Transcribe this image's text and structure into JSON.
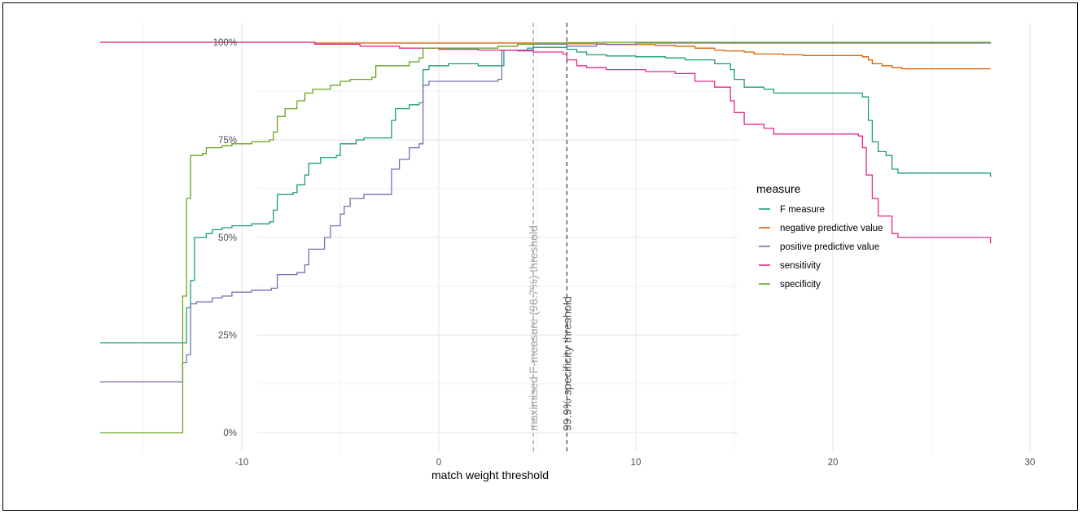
{
  "chart_data": {
    "type": "line",
    "title": "",
    "xlabel": "match weight threshold",
    "ylabel": "",
    "xlim": [
      -17.2,
      30
    ],
    "ylim": [
      0,
      1
    ],
    "x_ticks": [
      -10,
      0,
      10,
      20,
      30
    ],
    "x_tick_labels": [
      "-10",
      "0",
      "10",
      "20",
      "30"
    ],
    "y_ticks": [
      0,
      0.25,
      0.5,
      0.75,
      1.0
    ],
    "y_tick_labels": [
      "0%",
      "25%",
      "50%",
      "75%",
      "100%"
    ],
    "grid": true,
    "legend_position": "right",
    "legend_title": "measure",
    "vlines": [
      {
        "x": 4.8,
        "label": "maximised F-measure (98.7%) threshold",
        "color": "#a6a6a6"
      },
      {
        "x": 6.5,
        "label": "99.9% specificity threshold",
        "color": "#555555"
      }
    ],
    "series": [
      {
        "name": "F measure",
        "color": "#1b9e77",
        "points": [
          [
            -17.2,
            0.23
          ],
          [
            -13.0,
            0.23
          ],
          [
            -12.8,
            0.32
          ],
          [
            -12.6,
            0.39
          ],
          [
            -12.4,
            0.5
          ],
          [
            -12.0,
            0.5
          ],
          [
            -11.8,
            0.51
          ],
          [
            -11.5,
            0.52
          ],
          [
            -11.0,
            0.525
          ],
          [
            -10.5,
            0.53
          ],
          [
            -9.5,
            0.535
          ],
          [
            -8.6,
            0.54
          ],
          [
            -8.4,
            0.57
          ],
          [
            -8.2,
            0.61
          ],
          [
            -7.4,
            0.615
          ],
          [
            -7.2,
            0.635
          ],
          [
            -6.8,
            0.66
          ],
          [
            -6.6,
            0.69
          ],
          [
            -6.0,
            0.705
          ],
          [
            -5.2,
            0.71
          ],
          [
            -5.0,
            0.74
          ],
          [
            -4.2,
            0.75
          ],
          [
            -3.8,
            0.755
          ],
          [
            -2.6,
            0.755
          ],
          [
            -2.4,
            0.8
          ],
          [
            -2.2,
            0.83
          ],
          [
            -1.5,
            0.84
          ],
          [
            -1.0,
            0.845
          ],
          [
            -0.8,
            0.93
          ],
          [
            -0.5,
            0.94
          ],
          [
            0.5,
            0.945
          ],
          [
            2.0,
            0.94
          ],
          [
            3.2,
            0.94
          ],
          [
            3.3,
            0.98
          ],
          [
            4.5,
            0.985
          ],
          [
            4.8,
            0.987
          ],
          [
            6.5,
            0.982
          ],
          [
            7.0,
            0.975
          ],
          [
            7.5,
            0.968
          ],
          [
            8.5,
            0.965
          ],
          [
            10.0,
            0.963
          ],
          [
            11.5,
            0.96
          ],
          [
            12.5,
            0.955
          ],
          [
            14.0,
            0.945
          ],
          [
            14.8,
            0.93
          ],
          [
            15.0,
            0.905
          ],
          [
            15.5,
            0.885
          ],
          [
            16.5,
            0.88
          ],
          [
            17.0,
            0.87
          ],
          [
            21.5,
            0.86
          ],
          [
            21.8,
            0.8
          ],
          [
            22.0,
            0.745
          ],
          [
            22.3,
            0.72
          ],
          [
            22.7,
            0.71
          ],
          [
            23.0,
            0.675
          ],
          [
            23.3,
            0.665
          ],
          [
            28.0,
            0.665
          ],
          [
            28.0,
            0.655
          ]
        ]
      },
      {
        "name": "negative predictive value",
        "color": "#d95f02",
        "points": [
          [
            -17.2,
            1.0
          ],
          [
            -6.5,
            1.0
          ],
          [
            -6.3,
            0.998
          ],
          [
            4.5,
            0.998
          ],
          [
            6.5,
            0.996
          ],
          [
            8.5,
            0.994
          ],
          [
            11.0,
            0.992
          ],
          [
            12.0,
            0.99
          ],
          [
            13.0,
            0.985
          ],
          [
            14.0,
            0.98
          ],
          [
            14.5,
            0.978
          ],
          [
            15.5,
            0.975
          ],
          [
            16.0,
            0.97
          ],
          [
            17.5,
            0.968
          ],
          [
            18.5,
            0.966
          ],
          [
            21.5,
            0.963
          ],
          [
            21.8,
            0.955
          ],
          [
            22.0,
            0.945
          ],
          [
            22.5,
            0.94
          ],
          [
            23.0,
            0.935
          ],
          [
            23.5,
            0.932
          ],
          [
            28.0,
            0.932
          ]
        ]
      },
      {
        "name": "positive predictive value",
        "color": "#7570b3",
        "points": [
          [
            -17.2,
            0.13
          ],
          [
            -13.2,
            0.13
          ],
          [
            -13.0,
            0.18
          ],
          [
            -12.8,
            0.2
          ],
          [
            -12.6,
            0.33
          ],
          [
            -12.3,
            0.335
          ],
          [
            -11.5,
            0.345
          ],
          [
            -11.0,
            0.35
          ],
          [
            -10.5,
            0.36
          ],
          [
            -9.5,
            0.365
          ],
          [
            -8.5,
            0.37
          ],
          [
            -8.2,
            0.405
          ],
          [
            -7.2,
            0.41
          ],
          [
            -6.8,
            0.43
          ],
          [
            -6.6,
            0.47
          ],
          [
            -5.8,
            0.5
          ],
          [
            -5.5,
            0.53
          ],
          [
            -5.0,
            0.56
          ],
          [
            -4.8,
            0.58
          ],
          [
            -4.5,
            0.6
          ],
          [
            -3.8,
            0.61
          ],
          [
            -2.6,
            0.61
          ],
          [
            -2.4,
            0.675
          ],
          [
            -2.0,
            0.7
          ],
          [
            -1.5,
            0.73
          ],
          [
            -1.0,
            0.74
          ],
          [
            -0.8,
            0.89
          ],
          [
            -0.5,
            0.9
          ],
          [
            1.0,
            0.9
          ],
          [
            3.0,
            0.905
          ],
          [
            3.2,
            0.98
          ],
          [
            4.8,
            0.995
          ],
          [
            6.5,
            0.99
          ],
          [
            8.0,
            0.995
          ],
          [
            10.0,
            0.998
          ],
          [
            28.0,
            1.0
          ]
        ]
      },
      {
        "name": "sensitivity",
        "color": "#e7298a",
        "points": [
          [
            -17.2,
            1.0
          ],
          [
            -6.5,
            1.0
          ],
          [
            -6.3,
            0.995
          ],
          [
            -4.0,
            0.99
          ],
          [
            -2.0,
            0.985
          ],
          [
            0.0,
            0.982
          ],
          [
            2.0,
            0.98
          ],
          [
            4.0,
            0.978
          ],
          [
            4.8,
            0.975
          ],
          [
            6.3,
            0.97
          ],
          [
            6.5,
            0.955
          ],
          [
            7.0,
            0.94
          ],
          [
            7.5,
            0.935
          ],
          [
            8.5,
            0.93
          ],
          [
            10.5,
            0.925
          ],
          [
            12.0,
            0.92
          ],
          [
            13.0,
            0.9
          ],
          [
            14.0,
            0.885
          ],
          [
            14.8,
            0.85
          ],
          [
            15.0,
            0.82
          ],
          [
            15.5,
            0.79
          ],
          [
            16.5,
            0.78
          ],
          [
            17.0,
            0.765
          ],
          [
            21.3,
            0.76
          ],
          [
            21.5,
            0.73
          ],
          [
            21.7,
            0.66
          ],
          [
            22.0,
            0.6
          ],
          [
            22.3,
            0.555
          ],
          [
            23.0,
            0.51
          ],
          [
            23.3,
            0.5
          ],
          [
            28.0,
            0.5
          ],
          [
            28.0,
            0.485
          ]
        ]
      },
      {
        "name": "specificity",
        "color": "#66a61e",
        "points": [
          [
            -17.2,
            0.0
          ],
          [
            -13.2,
            0.0
          ],
          [
            -13.0,
            0.35
          ],
          [
            -12.8,
            0.6
          ],
          [
            -12.6,
            0.71
          ],
          [
            -12.0,
            0.715
          ],
          [
            -11.8,
            0.73
          ],
          [
            -11.0,
            0.735
          ],
          [
            -10.5,
            0.74
          ],
          [
            -9.5,
            0.745
          ],
          [
            -8.6,
            0.75
          ],
          [
            -8.4,
            0.77
          ],
          [
            -8.2,
            0.81
          ],
          [
            -7.8,
            0.83
          ],
          [
            -7.2,
            0.85
          ],
          [
            -6.8,
            0.87
          ],
          [
            -6.4,
            0.88
          ],
          [
            -5.5,
            0.89
          ],
          [
            -5.0,
            0.9
          ],
          [
            -4.5,
            0.905
          ],
          [
            -3.4,
            0.91
          ],
          [
            -3.2,
            0.94
          ],
          [
            -1.5,
            0.95
          ],
          [
            -1.0,
            0.96
          ],
          [
            -0.8,
            0.985
          ],
          [
            1.0,
            0.985
          ],
          [
            3.0,
            0.99
          ],
          [
            4.0,
            0.995
          ],
          [
            5.0,
            0.998
          ],
          [
            6.5,
            0.999
          ],
          [
            8.0,
            1.0
          ],
          [
            28.0,
            1.0
          ]
        ]
      }
    ]
  }
}
